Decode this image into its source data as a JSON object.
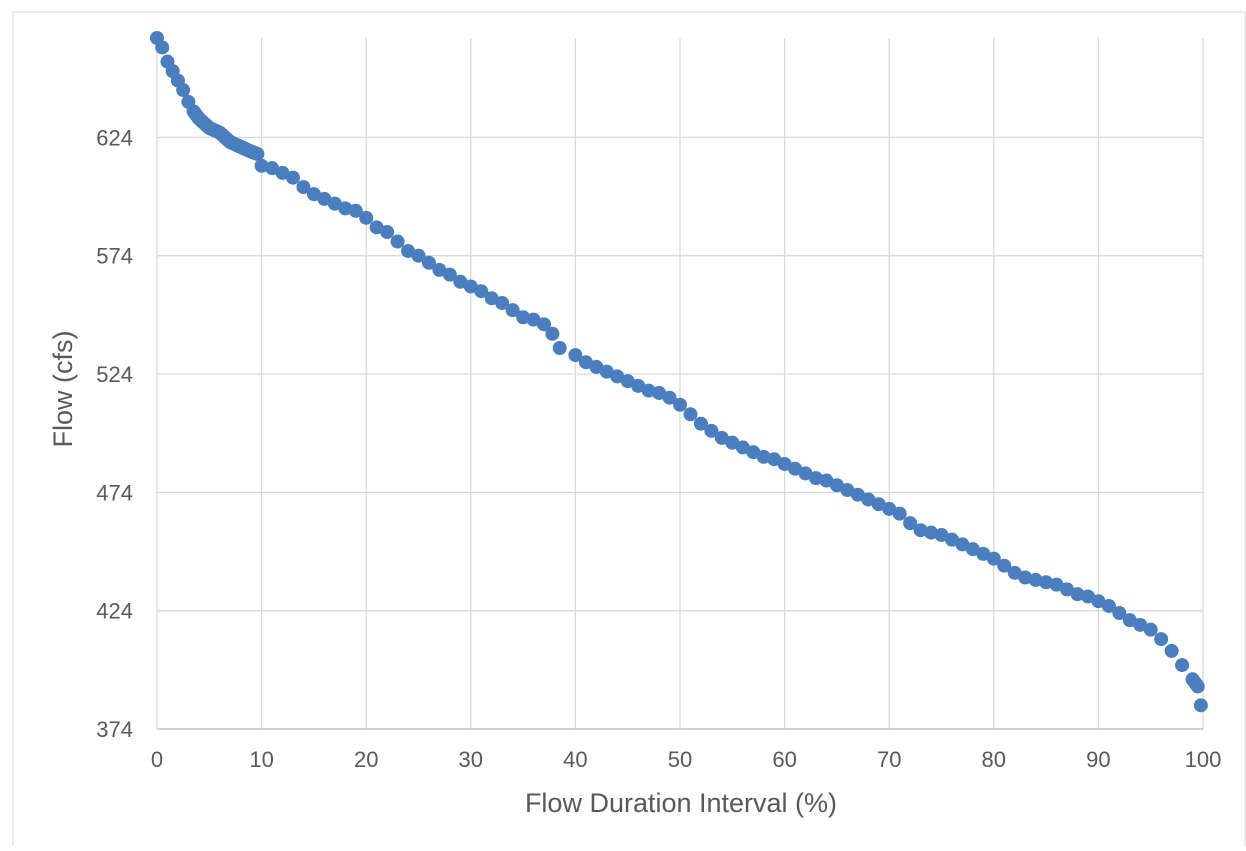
{
  "chart_data": {
    "type": "scatter",
    "title": "",
    "xlabel": "Flow Duration Interval (%)",
    "ylabel": "Flow (cfs)",
    "xlim": [
      0,
      100
    ],
    "ylim": [
      374,
      666
    ],
    "xticks": [
      0,
      10,
      20,
      30,
      40,
      50,
      60,
      70,
      80,
      90,
      100
    ],
    "yticks": [
      374,
      424,
      474,
      524,
      574,
      624
    ],
    "grid": true,
    "legend": "none",
    "marker_color": "#4a7ebf",
    "points": [
      [
        0,
        666
      ],
      [
        0.5,
        662
      ],
      [
        1,
        656
      ],
      [
        1.5,
        652
      ],
      [
        2,
        648
      ],
      [
        2.5,
        644
      ],
      [
        3,
        639
      ],
      [
        3.5,
        635
      ],
      [
        4,
        632
      ],
      [
        4.5,
        630
      ],
      [
        5,
        628
      ],
      [
        5.5,
        627
      ],
      [
        6,
        626
      ],
      [
        6.5,
        624
      ],
      [
        7,
        622
      ],
      [
        7.5,
        621
      ],
      [
        8,
        620
      ],
      [
        8.5,
        619
      ],
      [
        9,
        618
      ],
      [
        9.6,
        617
      ],
      [
        10,
        612
      ],
      [
        11,
        611
      ],
      [
        12,
        609
      ],
      [
        13,
        607
      ],
      [
        14,
        603
      ],
      [
        15,
        600
      ],
      [
        16,
        598
      ],
      [
        17,
        596
      ],
      [
        18,
        594
      ],
      [
        19,
        593
      ],
      [
        20,
        590
      ],
      [
        21,
        586
      ],
      [
        22,
        584
      ],
      [
        23,
        580
      ],
      [
        24,
        576
      ],
      [
        25,
        574
      ],
      [
        26,
        571
      ],
      [
        27,
        568
      ],
      [
        28,
        566
      ],
      [
        29,
        563
      ],
      [
        30,
        561
      ],
      [
        31,
        559
      ],
      [
        32,
        556
      ],
      [
        33,
        554
      ],
      [
        34,
        551
      ],
      [
        35,
        548
      ],
      [
        36,
        547
      ],
      [
        37,
        545
      ],
      [
        37.8,
        541
      ],
      [
        38.5,
        535
      ],
      [
        40,
        532
      ],
      [
        41,
        529
      ],
      [
        42,
        527
      ],
      [
        43,
        525
      ],
      [
        44,
        523
      ],
      [
        45,
        521
      ],
      [
        46,
        519
      ],
      [
        47,
        517
      ],
      [
        48,
        516
      ],
      [
        49,
        514
      ],
      [
        50,
        511
      ],
      [
        51,
        507
      ],
      [
        52,
        503
      ],
      [
        53,
        500
      ],
      [
        54,
        497
      ],
      [
        55,
        495
      ],
      [
        56,
        493
      ],
      [
        57,
        491
      ],
      [
        58,
        489
      ],
      [
        59,
        488
      ],
      [
        60,
        486
      ],
      [
        61,
        484
      ],
      [
        62,
        482
      ],
      [
        63,
        480
      ],
      [
        64,
        479
      ],
      [
        65,
        477
      ],
      [
        66,
        475
      ],
      [
        67,
        473
      ],
      [
        68,
        471
      ],
      [
        69,
        469
      ],
      [
        70,
        467
      ],
      [
        71,
        465
      ],
      [
        72,
        461
      ],
      [
        73,
        458
      ],
      [
        74,
        457
      ],
      [
        75,
        456
      ],
      [
        76,
        454
      ],
      [
        77,
        452
      ],
      [
        78,
        450
      ],
      [
        79,
        448
      ],
      [
        80,
        446
      ],
      [
        81,
        443
      ],
      [
        82,
        440
      ],
      [
        83,
        438
      ],
      [
        84,
        437
      ],
      [
        85,
        436
      ],
      [
        86,
        435
      ],
      [
        87,
        433
      ],
      [
        88,
        431
      ],
      [
        89,
        430
      ],
      [
        90,
        428
      ],
      [
        91,
        426
      ],
      [
        92,
        423
      ],
      [
        93,
        420
      ],
      [
        94,
        418
      ],
      [
        95,
        416
      ],
      [
        96,
        412
      ],
      [
        97,
        407
      ],
      [
        98,
        401
      ],
      [
        99,
        395
      ],
      [
        99.5,
        392
      ],
      [
        99.8,
        384
      ]
    ]
  }
}
